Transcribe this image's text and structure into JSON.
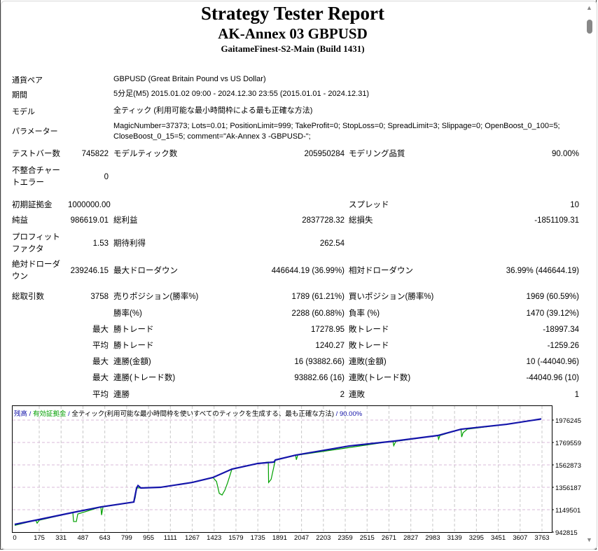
{
  "header": {
    "title": "Strategy Tester Report",
    "subtitle": "AK-Annex 03 GBPUSD",
    "server": "GaitameFinest-S2-Main (Build 1431)"
  },
  "info": [
    {
      "label": "通貨ペア",
      "value": "GBPUSD (Great Britain Pound vs US Dollar)"
    },
    {
      "label": "期間",
      "value": "5分足(M5) 2015.01.02 09:00 - 2024.12.30 23:55 (2015.01.01 - 2024.12.31)"
    },
    {
      "label": "モデル",
      "value": "全ティック (利用可能な最小時間枠による最も正確な方法)"
    },
    {
      "label": "パラメーター",
      "value": "MagicNumber=37373; Lots=0.01; PositionLimit=999; TakeProfit=0; StopLoss=0; SpreadLimit=3; Slippage=0; OpenBoost_0_100=5;",
      "value2": "CloseBoost_0_15=5; comment=\"Ak-Annex 3 -GBPUSD-\";"
    }
  ],
  "stats": [
    [
      "テストバー数",
      "745822",
      "モデルティック数",
      "205950284",
      "モデリング品質",
      "90.00%"
    ],
    [
      "不整合チャートエラー",
      "0",
      "",
      "",
      "",
      ""
    ],
    [
      "初期証拠金",
      "1000000.00",
      "",
      "",
      "スプレッド",
      "10"
    ],
    [
      "純益",
      "986619.01",
      "総利益",
      "2837728.32",
      "総損失",
      "-1851109.31"
    ],
    [
      "プロフィットファクタ",
      "1.53",
      "期待利得",
      "262.54",
      "",
      ""
    ],
    [
      "絶対ドローダウン",
      "239246.15",
      "最大ドローダウン",
      "446644.19 (36.99%)",
      "相対ドローダウン",
      "36.99% (446644.19)"
    ],
    [
      "総取引数",
      "3758",
      "売りポジション(勝率%)",
      "1789 (61.21%)",
      "買いポジション(勝率%)",
      "1969 (60.59%)"
    ],
    [
      "",
      "",
      "勝率(%)",
      "2288 (60.88%)",
      "負率 (%)",
      "1470 (39.12%)"
    ],
    [
      "",
      "最大",
      "勝トレード",
      "17278.95",
      "敗トレード",
      "-18997.34"
    ],
    [
      "",
      "平均",
      "勝トレード",
      "1240.27",
      "敗トレード",
      "-1259.26"
    ],
    [
      "",
      "最大",
      "連勝(金額)",
      "16 (93882.66)",
      "連敗(金額)",
      "10 (-44040.96)"
    ],
    [
      "",
      "最大",
      "連勝(トレード数)",
      "93882.66 (16)",
      "連敗(トレード数)",
      "-44040.96 (10)"
    ],
    [
      "",
      "平均",
      "連勝",
      "2",
      "連敗",
      "1"
    ]
  ],
  "chart_data": {
    "type": "line",
    "legend": {
      "balance": "残高",
      "equity": "有効証拠金",
      "model": "全ティック(利用可能な最小時間枠を使いすべてのティックを生成する、最も正確な方法)",
      "quality": "90.00%",
      "separator": " / "
    },
    "x_ticks": [
      "0",
      "175",
      "331",
      "487",
      "643",
      "799",
      "955",
      "1111",
      "1267",
      "1423",
      "1579",
      "1735",
      "1891",
      "2047",
      "2203",
      "2359",
      "2515",
      "2671",
      "2827",
      "2983",
      "3139",
      "3295",
      "3451",
      "3607",
      "3763"
    ],
    "y_ticks": [
      "1976245",
      "1769559",
      "1562873",
      "1356187",
      "1149501",
      "942815"
    ],
    "xlim": [
      0,
      3763
    ],
    "ylim": [
      942815,
      2105000
    ],
    "grid": true,
    "colors": {
      "balance": "#1414aa",
      "equity": "#00a000"
    },
    "series": [
      {
        "name": "残高",
        "points": [
          [
            0,
            1013900
          ],
          [
            150,
            1052600
          ],
          [
            415,
            1123700
          ],
          [
            615,
            1175000
          ],
          [
            850,
            1220000
          ],
          [
            870,
            1349700
          ],
          [
            880,
            1372000
          ],
          [
            900,
            1349700
          ],
          [
            1040,
            1356000
          ],
          [
            1267,
            1401000
          ],
          [
            1415,
            1446600
          ],
          [
            1550,
            1524000
          ],
          [
            1735,
            1576000
          ],
          [
            1850,
            1589000
          ],
          [
            1860,
            1608000
          ],
          [
            2005,
            1653000
          ],
          [
            2385,
            1737000
          ],
          [
            2710,
            1782600
          ],
          [
            3020,
            1834000
          ],
          [
            3185,
            1892000
          ],
          [
            3510,
            1937000
          ],
          [
            3758,
            1986619
          ]
        ]
      },
      {
        "name": "有効証拠金",
        "points": [
          [
            0,
            1005000
          ],
          [
            150,
            1052600
          ],
          [
            160,
            1025000
          ],
          [
            175,
            1052600
          ],
          [
            415,
            1123700
          ],
          [
            420,
            1040000
          ],
          [
            440,
            1040000
          ],
          [
            450,
            1110000
          ],
          [
            615,
            1175000
          ],
          [
            620,
            1100000
          ],
          [
            630,
            1175000
          ],
          [
            850,
            1220000
          ],
          [
            860,
            1260000
          ],
          [
            870,
            1349700
          ],
          [
            1040,
            1356000
          ],
          [
            1267,
            1401000
          ],
          [
            1415,
            1446600
          ],
          [
            1440,
            1410000
          ],
          [
            1460,
            1300000
          ],
          [
            1480,
            1285000
          ],
          [
            1500,
            1330000
          ],
          [
            1520,
            1400000
          ],
          [
            1550,
            1524000
          ],
          [
            1735,
            1576000
          ],
          [
            1810,
            1589000
          ],
          [
            1812,
            1401000
          ],
          [
            1830,
            1430000
          ],
          [
            1860,
            1608000
          ],
          [
            2005,
            1653000
          ],
          [
            2010,
            1610000
          ],
          [
            2020,
            1653000
          ],
          [
            2700,
            1782000
          ],
          [
            2705,
            1740000
          ],
          [
            2720,
            1780000
          ],
          [
            3020,
            1834000
          ],
          [
            3025,
            1800000
          ],
          [
            3035,
            1834000
          ],
          [
            3185,
            1892000
          ],
          [
            3190,
            1820000
          ],
          [
            3200,
            1860000
          ],
          [
            3230,
            1892000
          ],
          [
            3510,
            1937000
          ],
          [
            3758,
            1986619
          ]
        ]
      }
    ]
  }
}
